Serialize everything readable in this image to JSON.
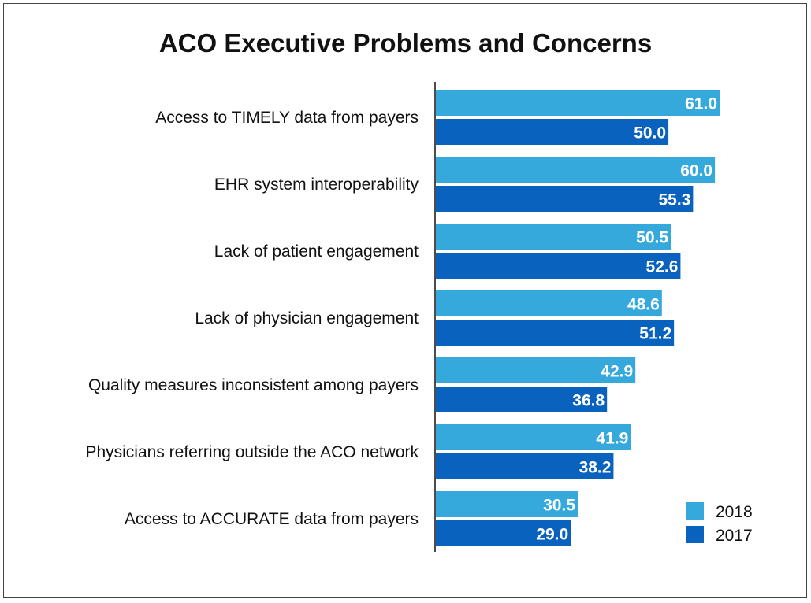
{
  "chart_data": {
    "type": "bar",
    "orientation": "horizontal",
    "title": "ACO Executive Problems and Concerns",
    "categories": [
      "Access to TIMELY data from payers",
      "EHR system interoperability",
      "Lack of patient engagement",
      "Lack of physician engagement",
      "Quality measures inconsistent among payers",
      "Physicians referring outside the ACO network",
      "Access to ACCURATE data from payers"
    ],
    "series": [
      {
        "name": "2018",
        "color": "#36a9dc",
        "values": [
          61.0,
          60.0,
          50.5,
          48.6,
          42.9,
          41.9,
          30.5
        ],
        "labels": [
          "61.0",
          "60.0",
          "50.5",
          "48.6",
          "42.9",
          "41.9",
          "30.5"
        ]
      },
      {
        "name": "2017",
        "color": "#0a62bf",
        "values": [
          50.0,
          55.3,
          52.6,
          51.2,
          36.8,
          38.2,
          29.0
        ],
        "labels": [
          "50.0",
          "55.3",
          "52.6",
          "51.2",
          "36.8",
          "38.2",
          "29.0"
        ]
      }
    ],
    "xlim": [
      0,
      61
    ],
    "legend_position": "bottom-right",
    "grid": false
  }
}
